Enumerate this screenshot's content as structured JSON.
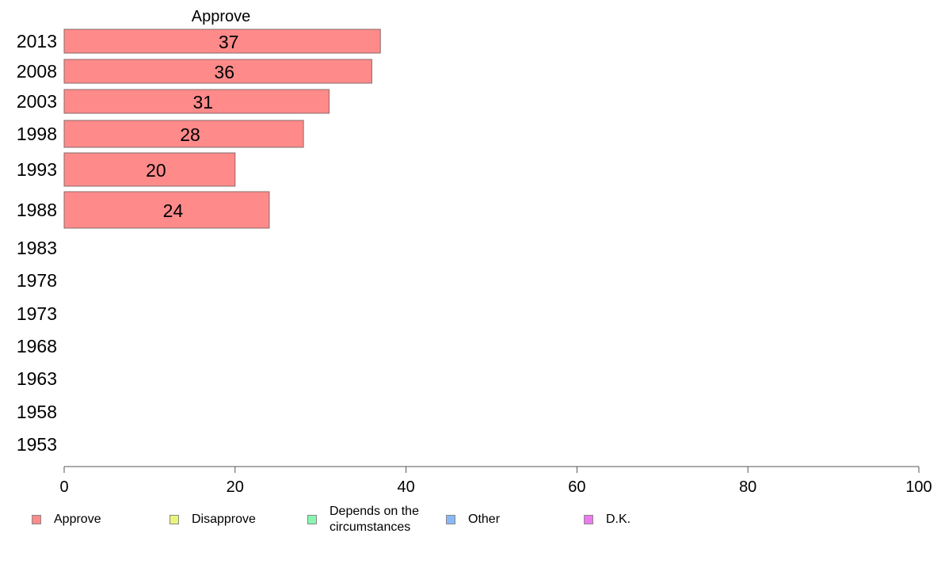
{
  "chart_data": {
    "type": "bar",
    "orientation": "horizontal",
    "panel_title": "Approve",
    "categories": [
      "2013",
      "2008",
      "2003",
      "1998",
      "1993",
      "1988",
      "1983",
      "1978",
      "1973",
      "1968",
      "1963",
      "1958",
      "1953"
    ],
    "series": [
      {
        "name": "Approve",
        "color": "#ff8a8a",
        "values": [
          37,
          36,
          31,
          28,
          20,
          24,
          null,
          null,
          null,
          null,
          null,
          null,
          null
        ]
      }
    ],
    "xlim": [
      0,
      100
    ],
    "x_ticks": [
      "0",
      "20",
      "40",
      "60",
      "80",
      "100"
    ],
    "grid": false,
    "legend_position": "bottom"
  },
  "legend": [
    {
      "label": "Approve",
      "color": "#ff8a8a"
    },
    {
      "label": "Disapprove",
      "color": "#e8f57a"
    },
    {
      "label": "Depends on the circumstances",
      "color": "#8af5b0"
    },
    {
      "label": "Other",
      "color": "#8ab8f5"
    },
    {
      "label": "D.K.",
      "color": "#ef7aef"
    }
  ]
}
